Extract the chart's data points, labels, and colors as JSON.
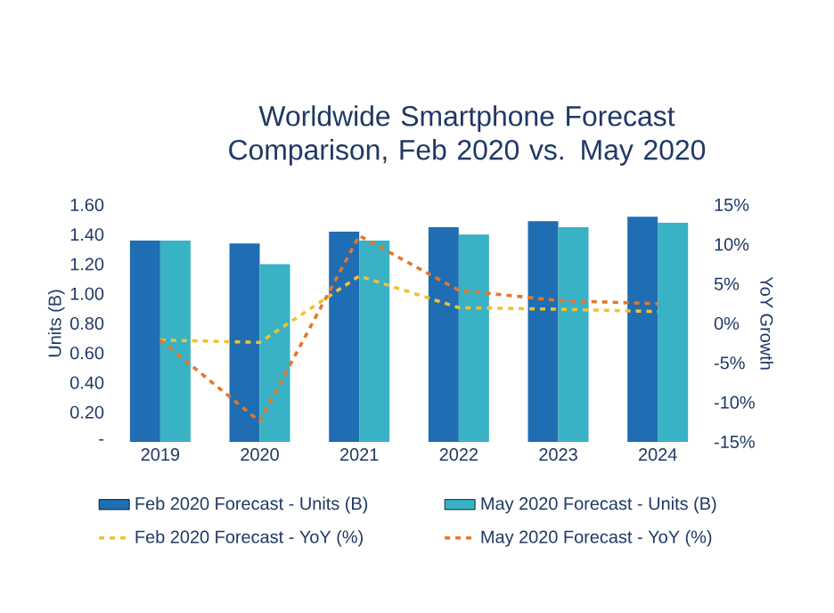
{
  "chart_data": {
    "type": "bar",
    "title": "Worldwide Smartphone Forecast Comparison, Feb 2020 vs. May 2020",
    "categories": [
      "2019",
      "2020",
      "2021",
      "2022",
      "2023",
      "2024"
    ],
    "ylabel": "Units (B)",
    "y2label": "YoY Growth",
    "ylim": [
      0,
      1.6
    ],
    "yticks": [
      {
        "value": 0,
        "label": "-"
      },
      {
        "value": 0.2,
        "label": "0.20"
      },
      {
        "value": 0.4,
        "label": "0.40"
      },
      {
        "value": 0.6,
        "label": "0.60"
      },
      {
        "value": 0.8,
        "label": "0.80"
      },
      {
        "value": 1.0,
        "label": "1.00"
      },
      {
        "value": 1.2,
        "label": "1.20"
      },
      {
        "value": 1.4,
        "label": "1.40"
      },
      {
        "value": 1.6,
        "label": "1.60"
      }
    ],
    "y2lim": [
      -15,
      15
    ],
    "y2ticks": [
      {
        "value": -15,
        "label": "-15%"
      },
      {
        "value": -10,
        "label": "-10%"
      },
      {
        "value": -5,
        "label": "-5%"
      },
      {
        "value": 0,
        "label": "0%"
      },
      {
        "value": 5,
        "label": "5%"
      },
      {
        "value": 10,
        "label": "10%"
      },
      {
        "value": 15,
        "label": "15%"
      }
    ],
    "legend": "bottom",
    "series": [
      {
        "name": "Feb 2020 Forecast - Units (B)",
        "color": "#1f6db3",
        "values": [
          1.36,
          1.34,
          1.42,
          1.45,
          1.49,
          1.52
        ]
      },
      {
        "name": "May 2020 Forecast - Units (B)",
        "color": "#38b2c4",
        "values": [
          1.36,
          1.2,
          1.36,
          1.4,
          1.45,
          1.48
        ]
      },
      {
        "name": "Feb 2020 Forecast - YoY (%)",
        "type": "line",
        "axis": "y2",
        "line_style": "dashed",
        "color": "#f0c230",
        "values": [
          -2.1,
          -2.4,
          6.0,
          2.0,
          1.8,
          1.5
        ]
      },
      {
        "name": "May 2020 Forecast - YoY (%)",
        "type": "line",
        "axis": "y2",
        "line_style": "dashed",
        "color": "#e4772c",
        "values": [
          -2.1,
          -12.4,
          11.1,
          4.2,
          2.9,
          2.5
        ]
      }
    ]
  }
}
